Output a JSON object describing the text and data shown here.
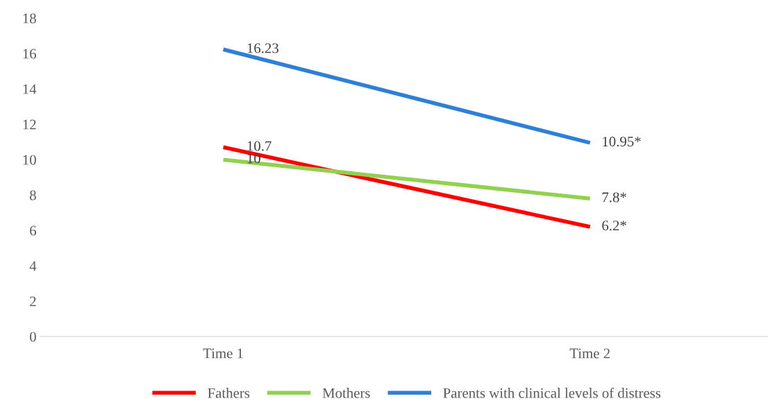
{
  "chart_data": {
    "type": "line",
    "categories": [
      "Time 1",
      "Time 2"
    ],
    "series": [
      {
        "name": "Fathers",
        "color": "#ff0000",
        "values": [
          10.7,
          6.2
        ],
        "value_labels": [
          "10.7",
          "6.2*"
        ]
      },
      {
        "name": "Mothers",
        "color": "#92d050",
        "values": [
          10,
          7.8
        ],
        "value_labels": [
          "10",
          "7.8*"
        ]
      },
      {
        "name": "Parents with clinical levels of distress",
        "color": "#2e7fd6",
        "values": [
          16.23,
          10.95
        ],
        "value_labels": [
          "16.23",
          "10.95*"
        ]
      }
    ],
    "ylim": [
      0,
      18
    ],
    "yticks": [
      0,
      2,
      4,
      6,
      8,
      10,
      12,
      14,
      16,
      18
    ],
    "grid": false,
    "legend": "bottom",
    "marker": "none",
    "line_style": "solid"
  }
}
